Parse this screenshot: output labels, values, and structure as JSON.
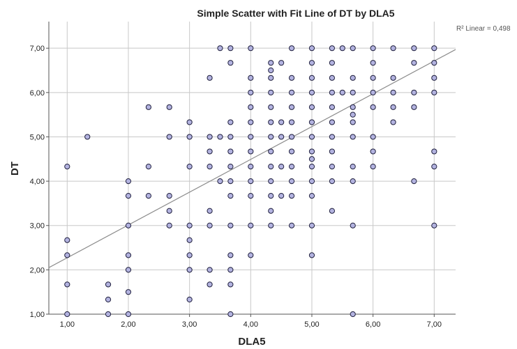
{
  "chart_data": {
    "type": "scatter",
    "title": "Simple Scatter with Fit Line of DT by DLA5",
    "xlabel": "DLA5",
    "ylabel": "DT",
    "xlim": [
      0.7,
      7.35
    ],
    "ylim": [
      1.0,
      7.6
    ],
    "x_ticks": [
      "1,00",
      "2,00",
      "3,00",
      "4,00",
      "5,00",
      "6,00",
      "7,00"
    ],
    "y_ticks": [
      "1,00",
      "2,00",
      "3,00",
      "4,00",
      "5,00",
      "6,00",
      "7,00"
    ],
    "grid": true,
    "fit_line": {
      "label": "R² Linear = 0,498",
      "x0": 0.7,
      "y0": 2.05,
      "x1": 7.35,
      "y1": 6.97
    },
    "colors": {
      "marker_fill": "#b3b3e0",
      "marker_stroke": "#1e1e3c",
      "fit_line": "#8c8c8c",
      "grid": "#c8c8c8",
      "axis": "#555555"
    },
    "points": [
      [
        1.0,
        4.33
      ],
      [
        1.0,
        2.67
      ],
      [
        1.0,
        2.33
      ],
      [
        1.0,
        1.67
      ],
      [
        1.0,
        1.0
      ],
      [
        1.33,
        5.0
      ],
      [
        1.67,
        1.67
      ],
      [
        1.67,
        1.33
      ],
      [
        1.67,
        1.0
      ],
      [
        2.0,
        4.0
      ],
      [
        2.0,
        3.67
      ],
      [
        2.0,
        3.0
      ],
      [
        2.0,
        2.33
      ],
      [
        2.0,
        2.0
      ],
      [
        2.0,
        1.5
      ],
      [
        2.0,
        1.0
      ],
      [
        2.33,
        5.67
      ],
      [
        2.33,
        4.33
      ],
      [
        2.33,
        3.67
      ],
      [
        2.67,
        5.67
      ],
      [
        2.67,
        5.0
      ],
      [
        2.67,
        3.67
      ],
      [
        2.67,
        3.33
      ],
      [
        2.67,
        3.0
      ],
      [
        3.0,
        5.33
      ],
      [
        3.0,
        5.0
      ],
      [
        3.0,
        4.33
      ],
      [
        3.0,
        3.0
      ],
      [
        3.0,
        2.67
      ],
      [
        3.0,
        2.33
      ],
      [
        3.0,
        2.0
      ],
      [
        3.0,
        1.33
      ],
      [
        3.33,
        6.33
      ],
      [
        3.33,
        5.0
      ],
      [
        3.33,
        4.67
      ],
      [
        3.33,
        4.33
      ],
      [
        3.33,
        3.33
      ],
      [
        3.33,
        3.0
      ],
      [
        3.33,
        2.0
      ],
      [
        3.33,
        1.67
      ],
      [
        3.5,
        7.0
      ],
      [
        3.5,
        5.0
      ],
      [
        3.5,
        4.0
      ],
      [
        3.67,
        7.0
      ],
      [
        3.67,
        6.67
      ],
      [
        3.67,
        5.33
      ],
      [
        3.67,
        5.0
      ],
      [
        3.67,
        4.67
      ],
      [
        3.67,
        4.33
      ],
      [
        3.67,
        4.0
      ],
      [
        3.67,
        3.67
      ],
      [
        3.67,
        3.0
      ],
      [
        3.67,
        2.33
      ],
      [
        3.67,
        2.0
      ],
      [
        3.67,
        1.67
      ],
      [
        3.67,
        1.0
      ],
      [
        4.0,
        7.0
      ],
      [
        4.0,
        6.33
      ],
      [
        4.0,
        6.0
      ],
      [
        4.0,
        5.67
      ],
      [
        4.0,
        5.33
      ],
      [
        4.0,
        5.0
      ],
      [
        4.0,
        4.67
      ],
      [
        4.0,
        4.33
      ],
      [
        4.0,
        4.0
      ],
      [
        4.0,
        3.67
      ],
      [
        4.0,
        3.0
      ],
      [
        4.0,
        2.33
      ],
      [
        4.33,
        6.0
      ],
      [
        4.33,
        5.67
      ],
      [
        4.33,
        5.33
      ],
      [
        4.33,
        5.0
      ],
      [
        4.33,
        4.67
      ],
      [
        4.33,
        4.33
      ],
      [
        4.33,
        4.0
      ],
      [
        4.33,
        3.67
      ],
      [
        4.33,
        3.33
      ],
      [
        4.33,
        3.0
      ],
      [
        4.33,
        6.67
      ],
      [
        4.33,
        6.5
      ],
      [
        4.33,
        6.33
      ],
      [
        4.5,
        6.67
      ],
      [
        4.5,
        5.33
      ],
      [
        4.5,
        5.0
      ],
      [
        4.5,
        4.33
      ],
      [
        4.5,
        3.67
      ],
      [
        4.67,
        7.0
      ],
      [
        4.67,
        6.33
      ],
      [
        4.67,
        6.0
      ],
      [
        4.67,
        5.67
      ],
      [
        4.67,
        5.33
      ],
      [
        4.67,
        5.0
      ],
      [
        4.67,
        4.67
      ],
      [
        4.67,
        4.33
      ],
      [
        4.67,
        4.0
      ],
      [
        4.67,
        3.67
      ],
      [
        4.67,
        3.0
      ],
      [
        5.0,
        7.0
      ],
      [
        5.0,
        6.67
      ],
      [
        5.0,
        6.33
      ],
      [
        5.0,
        6.0
      ],
      [
        5.0,
        5.67
      ],
      [
        5.0,
        5.33
      ],
      [
        5.0,
        5.0
      ],
      [
        5.0,
        4.67
      ],
      [
        5.0,
        4.5
      ],
      [
        5.0,
        4.33
      ],
      [
        5.0,
        4.0
      ],
      [
        5.0,
        3.67
      ],
      [
        5.0,
        3.0
      ],
      [
        5.0,
        2.33
      ],
      [
        5.33,
        7.0
      ],
      [
        5.33,
        6.67
      ],
      [
        5.33,
        6.33
      ],
      [
        5.33,
        6.0
      ],
      [
        5.33,
        5.67
      ],
      [
        5.33,
        5.33
      ],
      [
        5.33,
        5.0
      ],
      [
        5.33,
        4.67
      ],
      [
        5.33,
        4.33
      ],
      [
        5.33,
        4.0
      ],
      [
        5.33,
        3.33
      ],
      [
        5.5,
        7.0
      ],
      [
        5.5,
        6.0
      ],
      [
        5.67,
        7.0
      ],
      [
        5.67,
        6.33
      ],
      [
        5.67,
        6.0
      ],
      [
        5.67,
        5.67
      ],
      [
        5.67,
        5.5
      ],
      [
        5.67,
        5.33
      ],
      [
        5.67,
        5.0
      ],
      [
        5.67,
        4.33
      ],
      [
        5.67,
        4.0
      ],
      [
        5.67,
        3.0
      ],
      [
        5.67,
        1.0
      ],
      [
        6.0,
        7.0
      ],
      [
        6.0,
        6.67
      ],
      [
        6.0,
        6.33
      ],
      [
        6.0,
        6.0
      ],
      [
        6.0,
        5.67
      ],
      [
        6.0,
        5.0
      ],
      [
        6.0,
        4.67
      ],
      [
        6.0,
        4.33
      ],
      [
        6.33,
        7.0
      ],
      [
        6.33,
        6.33
      ],
      [
        6.33,
        6.0
      ],
      [
        6.33,
        5.67
      ],
      [
        6.33,
        5.33
      ],
      [
        6.67,
        7.0
      ],
      [
        6.67,
        6.67
      ],
      [
        6.67,
        6.0
      ],
      [
        6.67,
        5.67
      ],
      [
        6.67,
        4.0
      ],
      [
        7.0,
        7.0
      ],
      [
        7.0,
        6.67
      ],
      [
        7.0,
        6.33
      ],
      [
        7.0,
        6.0
      ],
      [
        7.0,
        4.67
      ],
      [
        7.0,
        4.33
      ],
      [
        7.0,
        3.0
      ]
    ]
  }
}
